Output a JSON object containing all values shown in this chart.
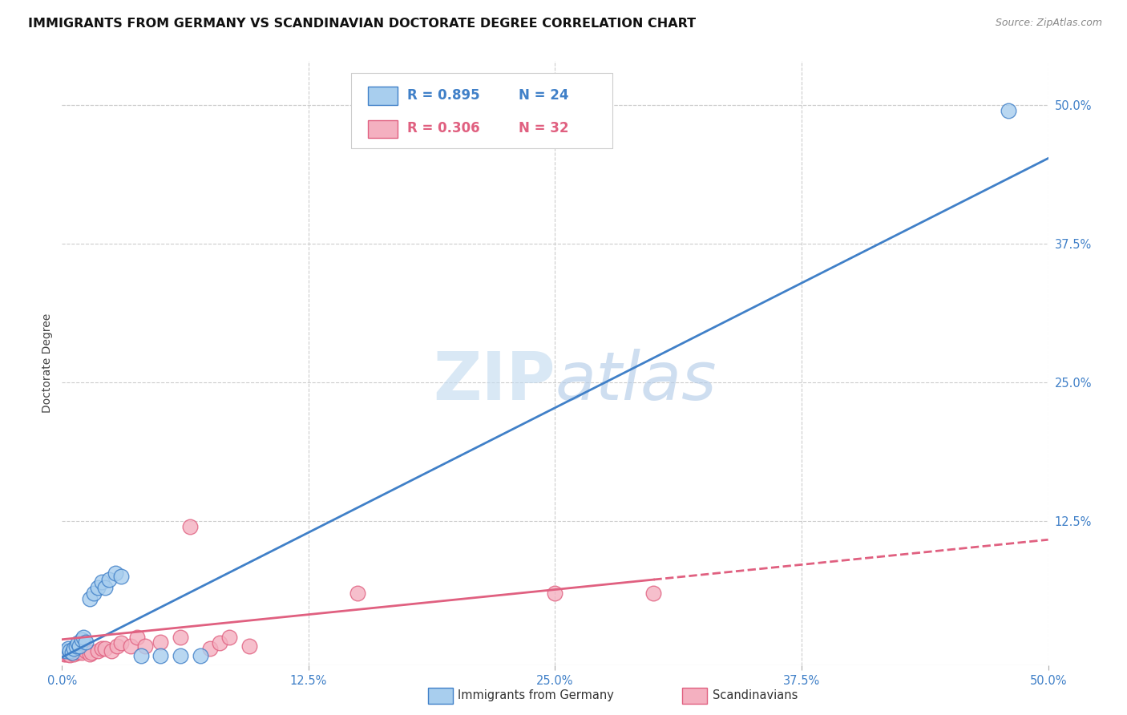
{
  "title": "IMMIGRANTS FROM GERMANY VS SCANDINAVIAN DOCTORATE DEGREE CORRELATION CHART",
  "source": "Source: ZipAtlas.com",
  "ylabel": "Doctorate Degree",
  "xlim": [
    0.0,
    0.5
  ],
  "ylim": [
    -0.005,
    0.54
  ],
  "xtick_labels": [
    "0.0%",
    "12.5%",
    "25.0%",
    "37.5%",
    "50.0%"
  ],
  "xtick_vals": [
    0.0,
    0.125,
    0.25,
    0.375,
    0.5
  ],
  "ytick_labels_right": [
    "50.0%",
    "37.5%",
    "25.0%",
    "12.5%"
  ],
  "ytick_vals_right": [
    0.5,
    0.375,
    0.25,
    0.125
  ],
  "color_blue": "#A8CEEE",
  "color_pink": "#F4B0C0",
  "color_line_blue": "#4080C8",
  "color_line_pink": "#E06080",
  "background_color": "#FFFFFF",
  "grid_color": "#CCCCCC",
  "title_fontsize": 11.5,
  "axis_label_fontsize": 10,
  "tick_fontsize": 10.5,
  "legend_fontsize": 12
}
